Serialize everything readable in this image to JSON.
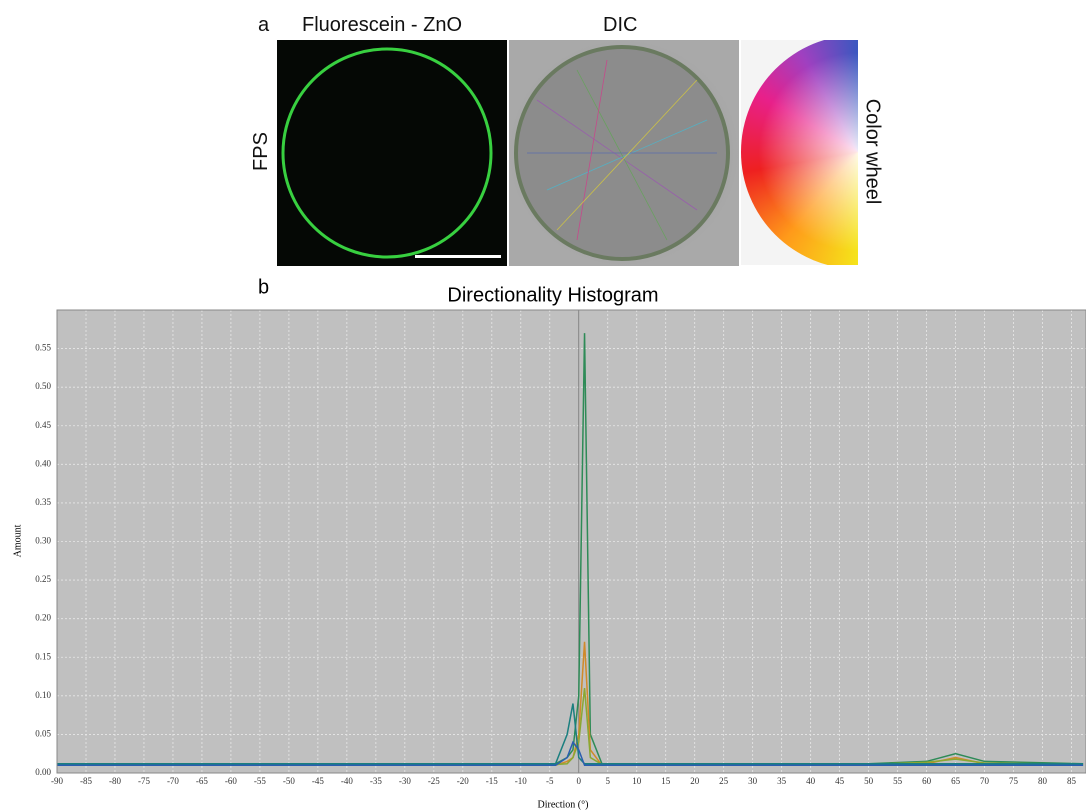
{
  "panel_a": {
    "label": "a",
    "left_title": "Fluorescein - ZnO",
    "mid_title": "DIC",
    "row_label": "FPS",
    "wheel_label": "Color wheel"
  },
  "chart_data": {
    "type": "line",
    "panel_label": "b",
    "title": "Directionality Histogram",
    "x_label": "Direction (°)",
    "y_label": "Amount",
    "x": [
      -90,
      -70,
      -50,
      -30,
      -10,
      -4,
      -2,
      -1,
      0,
      1,
      2,
      4,
      10,
      30,
      50,
      60,
      65,
      70,
      87
    ],
    "series": [
      {
        "color": "#2e8b57",
        "values": [
          0.012,
          0.012,
          0.012,
          0.012,
          0.012,
          0.012,
          0.02,
          0.03,
          0.1,
          0.57,
          0.05,
          0.012,
          0.012,
          0.012,
          0.012,
          0.015,
          0.025,
          0.015,
          0.012
        ]
      },
      {
        "color": "#d08a2a",
        "values": [
          0.01,
          0.01,
          0.01,
          0.01,
          0.01,
          0.01,
          0.015,
          0.02,
          0.05,
          0.17,
          0.03,
          0.01,
          0.01,
          0.01,
          0.01,
          0.012,
          0.02,
          0.012,
          0.01
        ]
      },
      {
        "color": "#8aa832",
        "values": [
          0.011,
          0.011,
          0.011,
          0.011,
          0.011,
          0.011,
          0.012,
          0.02,
          0.04,
          0.11,
          0.02,
          0.011,
          0.011,
          0.011,
          0.011,
          0.014,
          0.018,
          0.013,
          0.011
        ]
      },
      {
        "color": "#1b7f7f",
        "values": [
          0.012,
          0.012,
          0.012,
          0.012,
          0.012,
          0.012,
          0.05,
          0.09,
          0.02,
          0.012,
          0.012,
          0.012,
          0.012,
          0.012,
          0.012,
          0.012,
          0.012,
          0.012,
          0.012
        ]
      },
      {
        "color": "#2a5db0",
        "values": [
          0.01,
          0.01,
          0.01,
          0.01,
          0.01,
          0.01,
          0.02,
          0.04,
          0.03,
          0.01,
          0.01,
          0.01,
          0.01,
          0.01,
          0.01,
          0.01,
          0.01,
          0.01,
          0.01
        ]
      }
    ],
    "xlim": [
      -90,
      87.5
    ],
    "ylim": [
      0,
      0.6
    ],
    "xticks": [
      -90,
      -85,
      -80,
      -75,
      -70,
      -65,
      -60,
      -55,
      -50,
      -45,
      -40,
      -35,
      -30,
      -25,
      -20,
      -15,
      -10,
      -5,
      0,
      5,
      10,
      15,
      20,
      25,
      30,
      35,
      40,
      45,
      50,
      55,
      60,
      65,
      70,
      75,
      80,
      85
    ],
    "yticks": [
      {
        "value": 0,
        "label": "0.00"
      },
      {
        "value": 0.05,
        "label": "0.05"
      },
      {
        "value": 0.1,
        "label": "0.10"
      },
      {
        "value": 0.15,
        "label": "0.15"
      },
      {
        "value": 0.2,
        "label": "0.20"
      },
      {
        "value": 0.25,
        "label": "0.25"
      },
      {
        "value": 0.3,
        "label": "0.30"
      },
      {
        "value": 0.35,
        "label": "0.35"
      },
      {
        "value": 0.4,
        "label": "0.40"
      },
      {
        "value": 0.45,
        "label": "0.45"
      },
      {
        "value": 0.5,
        "label": "0.50"
      },
      {
        "value": 0.55,
        "label": "0.55"
      }
    ],
    "grid": true
  }
}
